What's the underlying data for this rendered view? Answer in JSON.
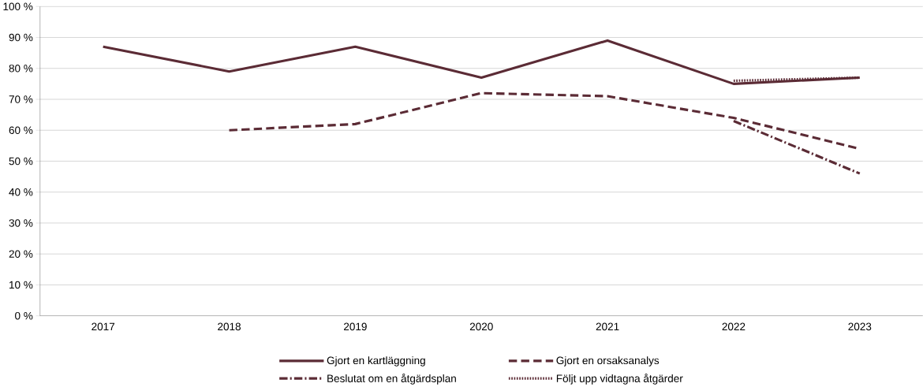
{
  "chart_data": {
    "type": "line",
    "categories": [
      "2017",
      "2018",
      "2019",
      "2020",
      "2021",
      "2022",
      "2023"
    ],
    "series": [
      {
        "name": "Gjort en kartläggning",
        "color": "#5b2b35",
        "line_style": "solid",
        "values": [
          87,
          79,
          87,
          77,
          89,
          75,
          77
        ]
      },
      {
        "name": "Gjort en orsaksanalys",
        "color": "#5b2b35",
        "line_style": "dashed",
        "values": [
          null,
          60,
          62,
          72,
          71,
          64,
          54
        ]
      },
      {
        "name": "Beslutat om en åtgärdsplan",
        "color": "#5b2b35",
        "line_style": "dashdot",
        "values": [
          null,
          null,
          null,
          null,
          null,
          63,
          46
        ]
      },
      {
        "name": "Följt upp vidtagna åtgärder",
        "color": "#5b2b35",
        "line_style": "dotted",
        "values": [
          null,
          null,
          null,
          null,
          null,
          76,
          77
        ]
      }
    ],
    "ylim": [
      0,
      100
    ],
    "yticks": [
      {
        "value": 0,
        "label": "0 %"
      },
      {
        "value": 10,
        "label": "10 %"
      },
      {
        "value": 20,
        "label": "20 %"
      },
      {
        "value": 30,
        "label": "30 %"
      },
      {
        "value": 40,
        "label": "40 %"
      },
      {
        "value": 50,
        "label": "50 %"
      },
      {
        "value": 60,
        "label": "60 %"
      },
      {
        "value": 70,
        "label": "70 %"
      },
      {
        "value": 80,
        "label": "80 %"
      },
      {
        "value": 90,
        "label": "90 %"
      },
      {
        "value": 100,
        "label": "100 %"
      }
    ],
    "grid": "y",
    "legend": "bottom",
    "marker": "none"
  }
}
